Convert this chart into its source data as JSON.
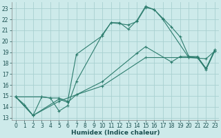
{
  "xlabel": "Humidex (Indice chaleur)",
  "bg_color": "#cdeaea",
  "grid_color": "#a8d0d0",
  "line_color": "#2d7d6e",
  "xlim": [
    -0.5,
    23.5
  ],
  "ylim": [
    12.8,
    23.6
  ],
  "yticks": [
    13,
    14,
    15,
    16,
    17,
    18,
    19,
    20,
    21,
    22,
    23
  ],
  "xticks": [
    0,
    1,
    2,
    3,
    4,
    5,
    6,
    7,
    8,
    9,
    10,
    11,
    12,
    13,
    14,
    15,
    16,
    17,
    18,
    19,
    20,
    21,
    22,
    23
  ],
  "lines": [
    {
      "x": [
        0,
        1,
        2,
        3,
        4,
        5,
        6,
        7,
        10,
        11,
        12,
        13,
        14,
        15,
        16,
        17,
        18,
        19,
        20,
        21,
        22,
        23
      ],
      "y": [
        14.9,
        14.2,
        13.2,
        14.9,
        14.8,
        13.6,
        14.1,
        16.3,
        20.6,
        21.7,
        21.7,
        21.1,
        21.9,
        23.2,
        22.9,
        22.1,
        21.3,
        20.4,
        18.6,
        18.5,
        17.4,
        19.1
      ]
    },
    {
      "x": [
        0,
        3,
        4,
        5,
        6,
        7,
        10,
        11,
        12,
        13,
        14,
        15,
        16,
        17,
        20,
        21,
        22,
        23
      ],
      "y": [
        14.9,
        14.9,
        14.8,
        14.8,
        14.5,
        18.8,
        20.5,
        21.7,
        21.6,
        21.5,
        21.8,
        23.1,
        22.9,
        22.0,
        18.5,
        18.5,
        17.5,
        19.2
      ]
    },
    {
      "x": [
        0,
        2,
        5,
        6,
        7,
        10,
        14,
        15,
        18,
        19,
        20,
        21,
        22,
        23
      ],
      "y": [
        14.9,
        13.2,
        14.7,
        14.4,
        15.1,
        16.3,
        18.9,
        19.5,
        18.1,
        18.6,
        18.6,
        18.6,
        17.5,
        19.2
      ]
    },
    {
      "x": [
        0,
        2,
        5,
        7,
        10,
        15,
        20,
        22,
        23
      ],
      "y": [
        14.9,
        13.2,
        14.5,
        15.1,
        15.9,
        18.5,
        18.5,
        18.4,
        19.1
      ]
    }
  ]
}
